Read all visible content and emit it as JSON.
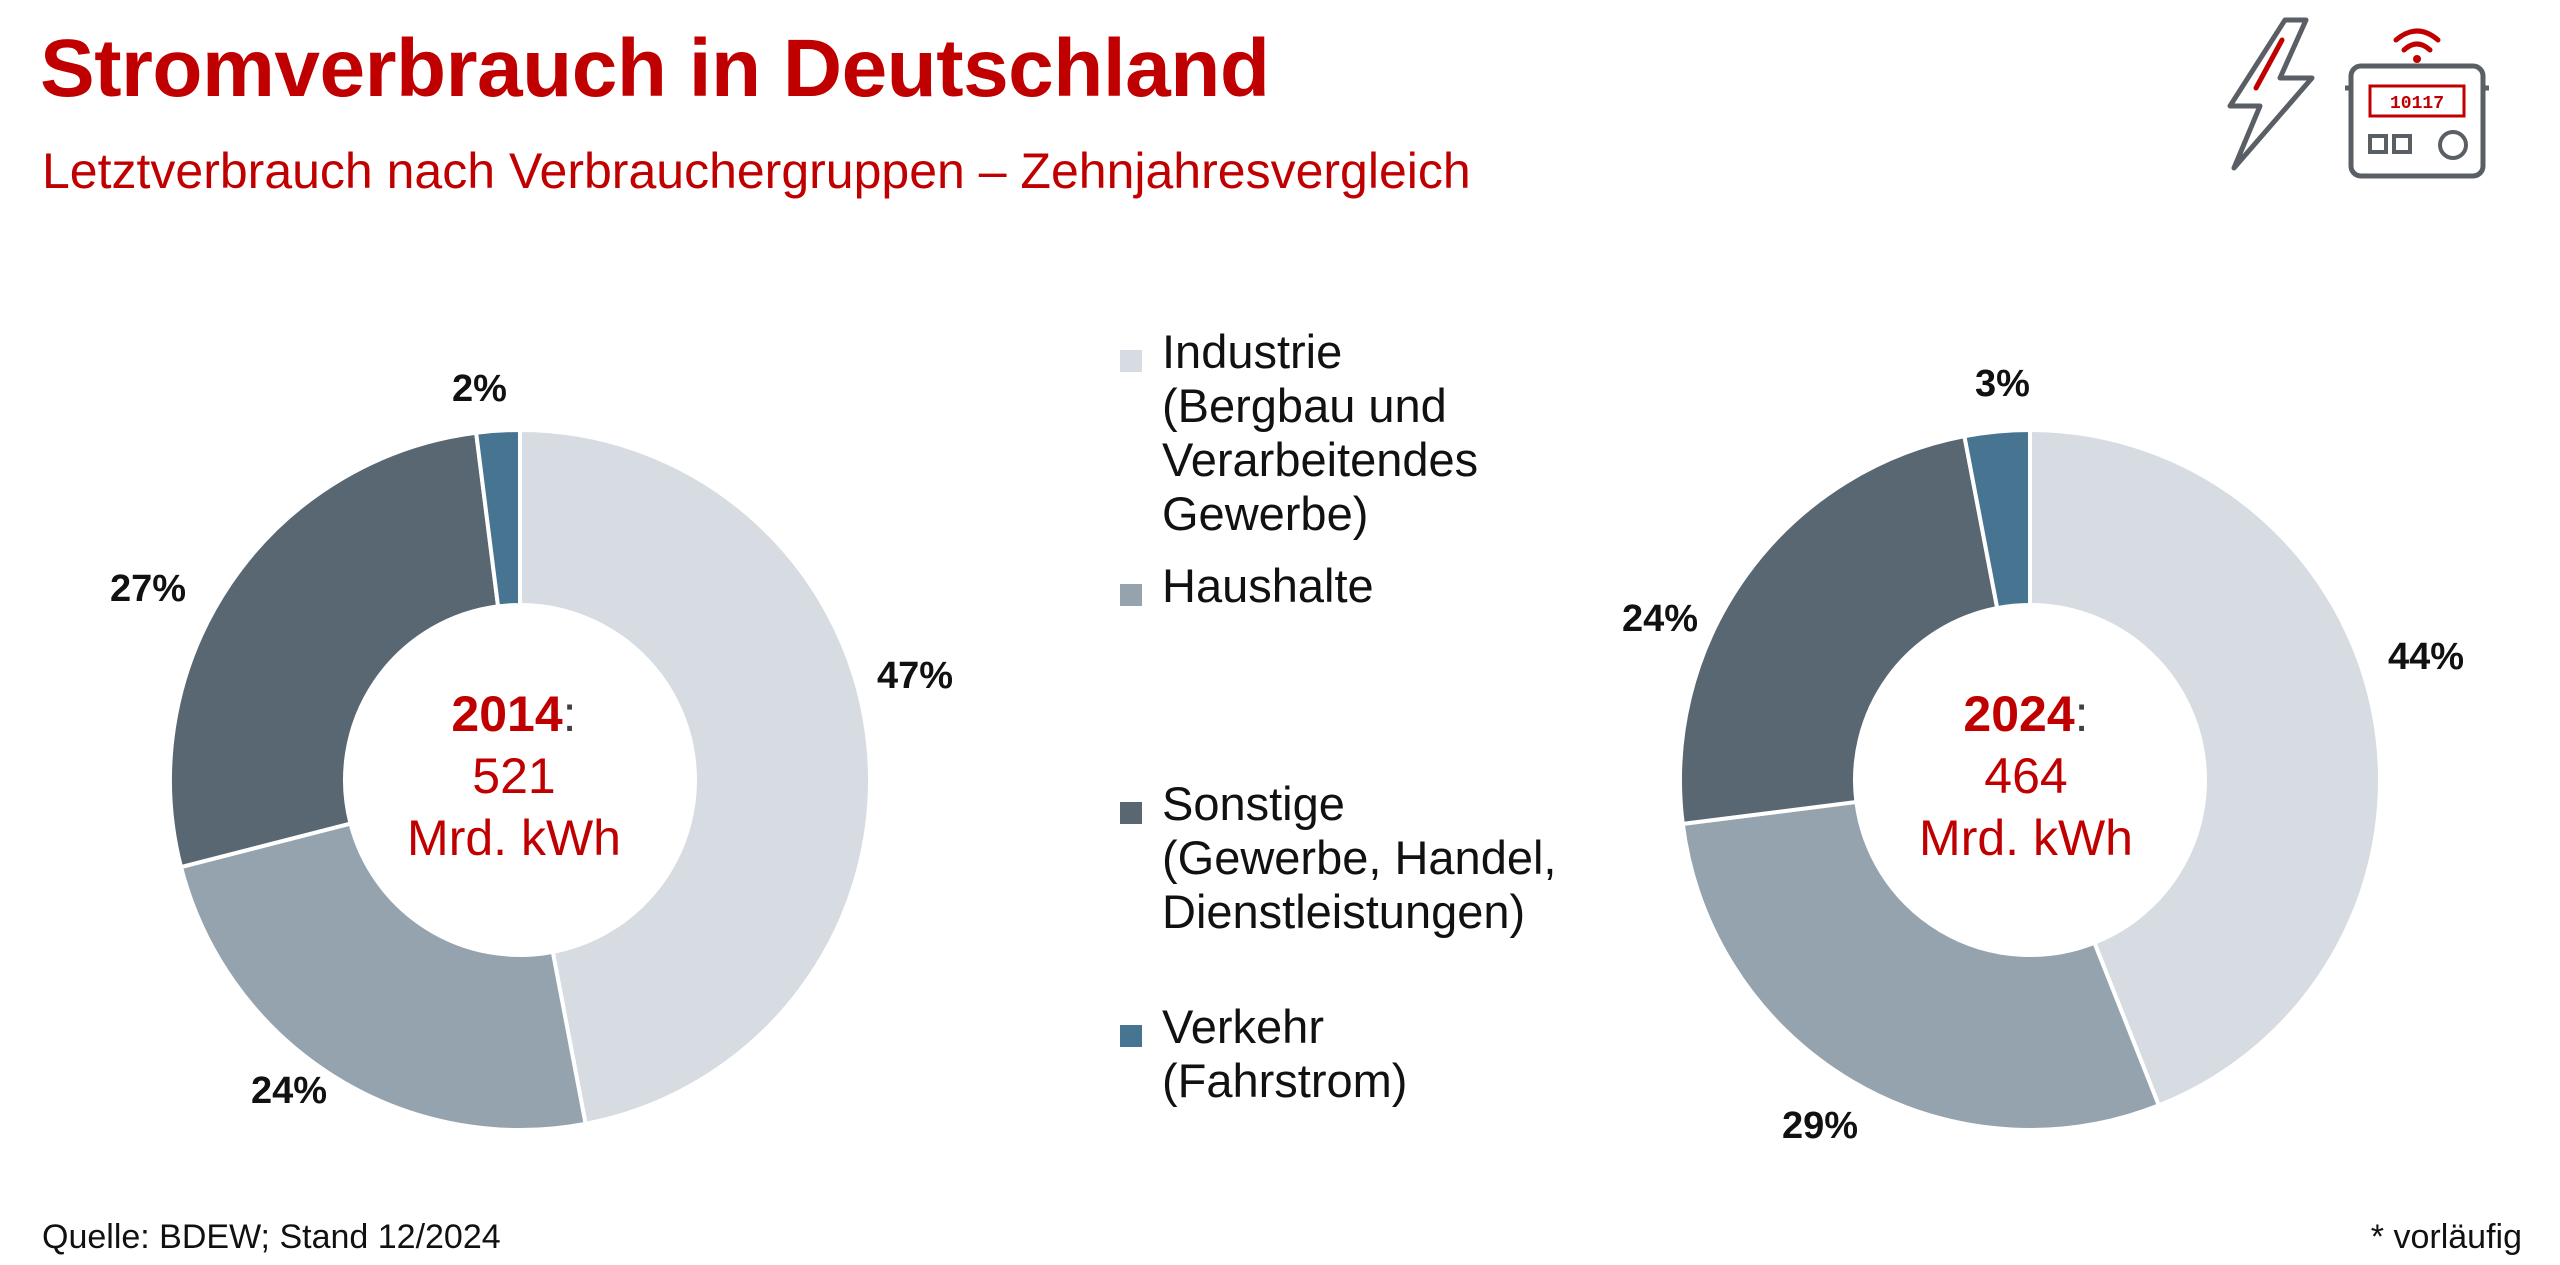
{
  "header": {
    "title": "Stromverbrauch in Deutschland",
    "subtitle": "Letztverbrauch nach Verbrauchergruppen – Zehnjahresvergleich"
  },
  "icons": [
    "lightning-bolt-icon",
    "electricity-meter-icon"
  ],
  "meter_display": "10117",
  "legend": [
    {
      "lines": [
        "Industrie",
        "(Bergbau und",
        "Verarbeitendes",
        "Gewerbe)"
      ],
      "color": "#d6dce2"
    },
    {
      "lines": [
        "Haushalte"
      ],
      "color": "#95a3ae"
    },
    {
      "lines": [
        "Sonstige",
        "(Gewerbe, Handel,",
        "Dienstleistungen)"
      ],
      "color": "#596773"
    },
    {
      "lines": [
        "Verkehr",
        "(Fahrstrom)"
      ],
      "color": "#467491"
    }
  ],
  "chart_data": [
    {
      "type": "pie",
      "year": "2014",
      "center_value": "521",
      "center_unit": "Mrd. kWh",
      "categories": [
        "Industrie",
        "Haushalte",
        "Sonstige",
        "Verkehr"
      ],
      "values": [
        47,
        24,
        27,
        2
      ],
      "labels": [
        "47%",
        "24%",
        "27%",
        "2%"
      ]
    },
    {
      "type": "pie",
      "year": "2024",
      "center_value": "464",
      "center_unit": "Mrd. kWh",
      "categories": [
        "Industrie",
        "Haushalte",
        "Sonstige",
        "Verkehr"
      ],
      "values": [
        44,
        29,
        24,
        3
      ],
      "labels": [
        "44%",
        "29%",
        "24%",
        "3%"
      ]
    }
  ],
  "footer": {
    "source": "Quelle: BDEW; Stand 12/2024",
    "note": "* vorläufig"
  }
}
